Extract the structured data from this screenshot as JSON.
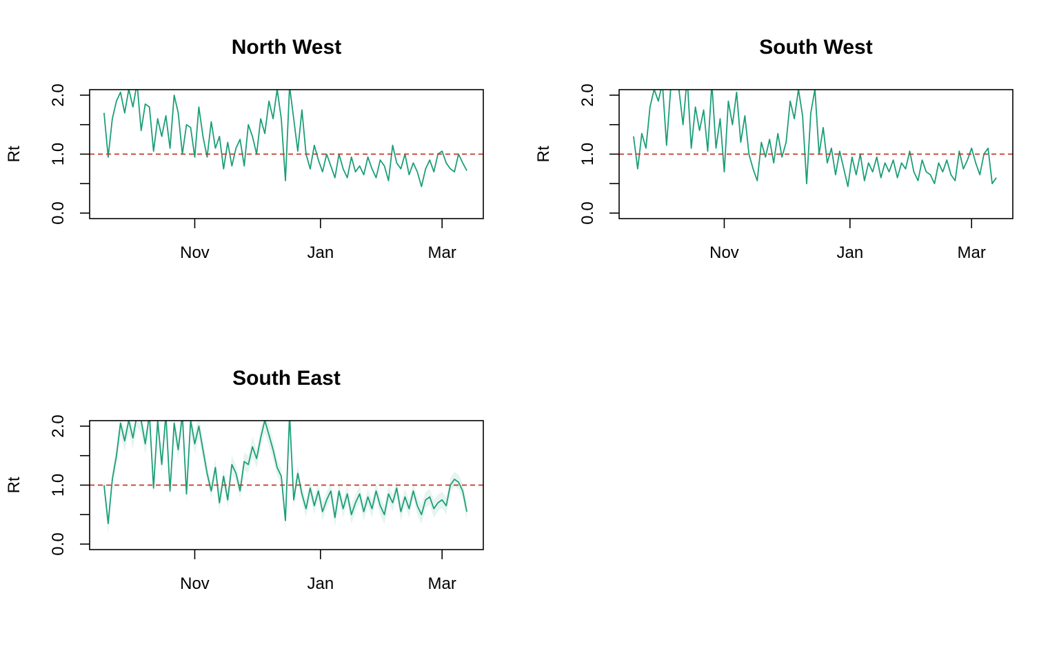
{
  "colors": {
    "series": "#1b9e77",
    "ribbon": "#e6f4ef",
    "reference": "#c0392b",
    "axis": "#000000",
    "background": "#ffffff"
  },
  "chart_data": [
    {
      "type": "line",
      "title": "North West",
      "xlabel": "",
      "ylabel": "Rt",
      "x_range": [
        "2020-09-11",
        "2021-03-21"
      ],
      "ylim": [
        0,
        2.0
      ],
      "y_ticks": [
        0.0,
        0.5,
        1.0,
        1.5,
        2.0
      ],
      "y_tick_labels": [
        {
          "value": 0.0,
          "label": "0.0"
        },
        {
          "value": 1.0,
          "label": "1.0"
        },
        {
          "value": 2.0,
          "label": "2.0"
        }
      ],
      "x_ticks": [
        {
          "date": "2020-11-01",
          "label": "Nov"
        },
        {
          "date": "2021-01-01",
          "label": "Jan"
        },
        {
          "date": "2021-03-01",
          "label": "Mar"
        }
      ],
      "reference_line": 1.0,
      "grid": false,
      "ribbon": false,
      "series": [
        {
          "x": [
            "2020-09-18",
            "2020-09-20",
            "2020-09-22",
            "2020-09-24",
            "2020-09-26",
            "2020-09-28",
            "2020-09-30",
            "2020-10-02",
            "2020-10-04",
            "2020-10-06",
            "2020-10-08",
            "2020-10-10",
            "2020-10-12",
            "2020-10-14",
            "2020-10-16",
            "2020-10-18",
            "2020-10-20",
            "2020-10-22",
            "2020-10-24",
            "2020-10-26",
            "2020-10-28",
            "2020-10-30",
            "2020-11-01",
            "2020-11-03",
            "2020-11-05",
            "2020-11-07",
            "2020-11-09",
            "2020-11-11",
            "2020-11-13",
            "2020-11-15",
            "2020-11-17",
            "2020-11-19",
            "2020-11-21",
            "2020-11-23",
            "2020-11-25",
            "2020-11-27",
            "2020-11-29",
            "2020-12-01",
            "2020-12-03",
            "2020-12-05",
            "2020-12-07",
            "2020-12-09",
            "2020-12-11",
            "2020-12-13",
            "2020-12-15",
            "2020-12-17",
            "2020-12-19",
            "2020-12-21",
            "2020-12-23",
            "2020-12-25",
            "2020-12-27",
            "2020-12-29",
            "2020-12-31",
            "2021-01-02",
            "2021-01-04",
            "2021-01-06",
            "2021-01-08",
            "2021-01-10",
            "2021-01-12",
            "2021-01-14",
            "2021-01-16",
            "2021-01-18",
            "2021-01-20",
            "2021-01-22",
            "2021-01-24",
            "2021-01-26",
            "2021-01-28",
            "2021-01-30",
            "2021-02-01",
            "2021-02-03",
            "2021-02-05",
            "2021-02-07",
            "2021-02-09",
            "2021-02-11",
            "2021-02-13",
            "2021-02-15",
            "2021-02-17",
            "2021-02-19",
            "2021-02-21",
            "2021-02-23",
            "2021-02-25",
            "2021-02-27",
            "2021-03-01",
            "2021-03-03",
            "2021-03-05",
            "2021-03-07",
            "2021-03-09",
            "2021-03-11",
            "2021-03-13"
          ],
          "y": [
            1.7,
            0.95,
            1.6,
            1.9,
            2.05,
            1.7,
            2.1,
            1.8,
            2.2,
            1.4,
            1.85,
            1.8,
            1.05,
            1.6,
            1.3,
            1.65,
            1.1,
            2.0,
            1.7,
            1.0,
            1.5,
            1.45,
            0.95,
            1.8,
            1.3,
            0.95,
            1.55,
            1.1,
            1.3,
            0.75,
            1.2,
            0.8,
            1.1,
            1.25,
            0.8,
            1.5,
            1.3,
            1.0,
            1.6,
            1.35,
            1.9,
            1.6,
            2.1,
            1.6,
            0.55,
            2.15,
            1.6,
            1.05,
            1.75,
            1.0,
            0.75,
            1.15,
            0.9,
            0.7,
            1.0,
            0.8,
            0.6,
            1.0,
            0.75,
            0.6,
            0.95,
            0.7,
            0.8,
            0.65,
            0.95,
            0.75,
            0.6,
            0.9,
            0.8,
            0.55,
            1.15,
            0.85,
            0.75,
            1.0,
            0.65,
            0.85,
            0.7,
            0.45,
            0.75,
            0.9,
            0.7,
            1.0,
            1.05,
            0.85,
            0.75,
            0.7,
            1.0,
            0.85,
            0.72
          ]
        }
      ]
    },
    {
      "type": "line",
      "title": "South West",
      "xlabel": "",
      "ylabel": "Rt",
      "x_range": [
        "2020-09-11",
        "2021-03-21"
      ],
      "ylim": [
        0,
        2.0
      ],
      "y_ticks": [
        0.0,
        0.5,
        1.0,
        1.5,
        2.0
      ],
      "y_tick_labels": [
        {
          "value": 0.0,
          "label": "0.0"
        },
        {
          "value": 1.0,
          "label": "1.0"
        },
        {
          "value": 2.0,
          "label": "2.0"
        }
      ],
      "x_ticks": [
        {
          "date": "2020-11-01",
          "label": "Nov"
        },
        {
          "date": "2021-01-01",
          "label": "Jan"
        },
        {
          "date": "2021-03-01",
          "label": "Mar"
        }
      ],
      "reference_line": 1.0,
      "grid": false,
      "ribbon": false,
      "series": [
        {
          "x": [
            "2020-09-18",
            "2020-09-20",
            "2020-09-22",
            "2020-09-24",
            "2020-09-26",
            "2020-09-28",
            "2020-09-30",
            "2020-10-02",
            "2020-10-04",
            "2020-10-06",
            "2020-10-08",
            "2020-10-10",
            "2020-10-12",
            "2020-10-14",
            "2020-10-16",
            "2020-10-18",
            "2020-10-20",
            "2020-10-22",
            "2020-10-24",
            "2020-10-26",
            "2020-10-28",
            "2020-10-30",
            "2020-11-01",
            "2020-11-03",
            "2020-11-05",
            "2020-11-07",
            "2020-11-09",
            "2020-11-11",
            "2020-11-13",
            "2020-11-15",
            "2020-11-17",
            "2020-11-19",
            "2020-11-21",
            "2020-11-23",
            "2020-11-25",
            "2020-11-27",
            "2020-11-29",
            "2020-12-01",
            "2020-12-03",
            "2020-12-05",
            "2020-12-07",
            "2020-12-09",
            "2020-12-11",
            "2020-12-13",
            "2020-12-15",
            "2020-12-17",
            "2020-12-19",
            "2020-12-21",
            "2020-12-23",
            "2020-12-25",
            "2020-12-27",
            "2020-12-29",
            "2020-12-31",
            "2021-01-02",
            "2021-01-04",
            "2021-01-06",
            "2021-01-08",
            "2021-01-10",
            "2021-01-12",
            "2021-01-14",
            "2021-01-16",
            "2021-01-18",
            "2021-01-20",
            "2021-01-22",
            "2021-01-24",
            "2021-01-26",
            "2021-01-28",
            "2021-01-30",
            "2021-02-01",
            "2021-02-03",
            "2021-02-05",
            "2021-02-07",
            "2021-02-09",
            "2021-02-11",
            "2021-02-13",
            "2021-02-15",
            "2021-02-17",
            "2021-02-19",
            "2021-02-21",
            "2021-02-23",
            "2021-02-25",
            "2021-02-27",
            "2021-03-01",
            "2021-03-03",
            "2021-03-05",
            "2021-03-07",
            "2021-03-09",
            "2021-03-11",
            "2021-03-13"
          ],
          "y": [
            1.3,
            0.75,
            1.35,
            1.1,
            1.8,
            2.1,
            1.9,
            2.2,
            1.15,
            2.1,
            2.2,
            2.1,
            1.5,
            2.3,
            1.1,
            1.8,
            1.4,
            1.75,
            1.05,
            2.2,
            1.1,
            1.6,
            0.7,
            1.9,
            1.5,
            2.05,
            1.2,
            1.65,
            1.0,
            0.75,
            0.55,
            1.2,
            0.95,
            1.25,
            0.85,
            1.35,
            0.95,
            1.2,
            1.9,
            1.6,
            2.1,
            1.65,
            0.5,
            1.7,
            2.1,
            1.0,
            1.45,
            0.85,
            1.1,
            0.65,
            1.05,
            0.75,
            0.45,
            0.95,
            0.65,
            1.0,
            0.55,
            0.85,
            0.7,
            0.95,
            0.6,
            0.85,
            0.7,
            0.9,
            0.6,
            0.85,
            0.75,
            1.05,
            0.7,
            0.55,
            0.9,
            0.7,
            0.65,
            0.5,
            0.85,
            0.7,
            0.9,
            0.65,
            0.55,
            1.05,
            0.75,
            0.9,
            1.1,
            0.85,
            0.65,
            1.0,
            1.1,
            0.5,
            0.6
          ]
        }
      ]
    },
    {
      "type": "line",
      "title": "South East",
      "xlabel": "",
      "ylabel": "Rt",
      "x_range": [
        "2020-09-11",
        "2021-03-21"
      ],
      "ylim": [
        0,
        2.0
      ],
      "y_ticks": [
        0.0,
        0.5,
        1.0,
        1.5,
        2.0
      ],
      "y_tick_labels": [
        {
          "value": 0.0,
          "label": "0.0"
        },
        {
          "value": 1.0,
          "label": "1.0"
        },
        {
          "value": 2.0,
          "label": "2.0"
        }
      ],
      "x_ticks": [
        {
          "date": "2020-11-01",
          "label": "Nov"
        },
        {
          "date": "2021-01-01",
          "label": "Jan"
        },
        {
          "date": "2021-03-01",
          "label": "Mar"
        }
      ],
      "reference_line": 1.0,
      "grid": false,
      "ribbon": true,
      "series": [
        {
          "x": [
            "2020-09-18",
            "2020-09-20",
            "2020-09-22",
            "2020-09-24",
            "2020-09-26",
            "2020-09-28",
            "2020-09-30",
            "2020-10-02",
            "2020-10-04",
            "2020-10-06",
            "2020-10-08",
            "2020-10-10",
            "2020-10-12",
            "2020-10-14",
            "2020-10-16",
            "2020-10-18",
            "2020-10-20",
            "2020-10-22",
            "2020-10-24",
            "2020-10-26",
            "2020-10-28",
            "2020-10-30",
            "2020-11-01",
            "2020-11-03",
            "2020-11-05",
            "2020-11-07",
            "2020-11-09",
            "2020-11-11",
            "2020-11-13",
            "2020-11-15",
            "2020-11-17",
            "2020-11-19",
            "2020-11-21",
            "2020-11-23",
            "2020-11-25",
            "2020-11-27",
            "2020-11-29",
            "2020-12-01",
            "2020-12-03",
            "2020-12-05",
            "2020-12-07",
            "2020-12-09",
            "2020-12-11",
            "2020-12-13",
            "2020-12-15",
            "2020-12-17",
            "2020-12-19",
            "2020-12-21",
            "2020-12-23",
            "2020-12-25",
            "2020-12-27",
            "2020-12-29",
            "2020-12-31",
            "2021-01-02",
            "2021-01-04",
            "2021-01-06",
            "2021-01-08",
            "2021-01-10",
            "2021-01-12",
            "2021-01-14",
            "2021-01-16",
            "2021-01-18",
            "2021-01-20",
            "2021-01-22",
            "2021-01-24",
            "2021-01-26",
            "2021-01-28",
            "2021-01-30",
            "2021-02-01",
            "2021-02-03",
            "2021-02-05",
            "2021-02-07",
            "2021-02-09",
            "2021-02-11",
            "2021-02-13",
            "2021-02-15",
            "2021-02-17",
            "2021-02-19",
            "2021-02-21",
            "2021-02-23",
            "2021-02-25",
            "2021-02-27",
            "2021-03-01",
            "2021-03-03",
            "2021-03-05",
            "2021-03-07",
            "2021-03-09",
            "2021-03-11",
            "2021-03-13"
          ],
          "y": [
            1.0,
            0.35,
            1.1,
            1.5,
            2.05,
            1.75,
            2.1,
            1.8,
            2.2,
            2.1,
            1.7,
            2.2,
            0.95,
            2.1,
            1.35,
            2.2,
            0.9,
            2.05,
            1.6,
            2.2,
            0.85,
            2.1,
            1.7,
            2.0,
            1.6,
            1.2,
            0.9,
            1.3,
            0.7,
            1.15,
            0.75,
            1.35,
            1.2,
            0.9,
            1.4,
            1.35,
            1.65,
            1.45,
            1.8,
            2.1,
            1.85,
            1.6,
            1.3,
            1.15,
            0.4,
            2.2,
            0.75,
            1.2,
            0.85,
            0.6,
            0.95,
            0.65,
            0.9,
            0.55,
            0.75,
            0.9,
            0.45,
            0.9,
            0.6,
            0.85,
            0.5,
            0.7,
            0.85,
            0.55,
            0.8,
            0.6,
            0.9,
            0.65,
            0.5,
            0.85,
            0.7,
            0.95,
            0.55,
            0.8,
            0.6,
            0.9,
            0.65,
            0.5,
            0.75,
            0.8,
            0.6,
            0.7,
            0.75,
            0.65,
            1.0,
            1.1,
            1.05,
            0.9,
            0.55
          ]
        }
      ]
    }
  ]
}
